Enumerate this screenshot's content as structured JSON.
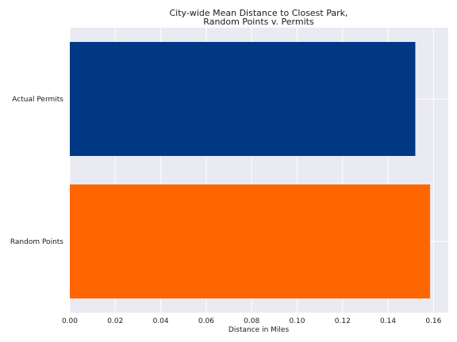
{
  "chart_data": {
    "type": "bar",
    "orientation": "horizontal",
    "title_lines": [
      "City-wide Mean Distance to Closest Park,",
      "Random Points v. Permits"
    ],
    "xlabel": "Distance in Miles",
    "ylabel": "",
    "categories": [
      "Actual Permits",
      "Random Points"
    ],
    "values": [
      0.152,
      0.1585
    ],
    "colors": [
      "#003884",
      "#ff6600"
    ],
    "xlim": [
      0,
      0.1665
    ],
    "xticks": [
      0.0,
      0.02,
      0.04,
      0.06,
      0.08,
      0.1,
      0.12,
      0.14,
      0.16
    ],
    "xtick_labels": [
      "0.00",
      "0.02",
      "0.04",
      "0.06",
      "0.08",
      "0.10",
      "0.12",
      "0.14",
      "0.16"
    ],
    "grid": true,
    "background_color": "#eaeaf2",
    "grid_color": "#ffffff"
  }
}
